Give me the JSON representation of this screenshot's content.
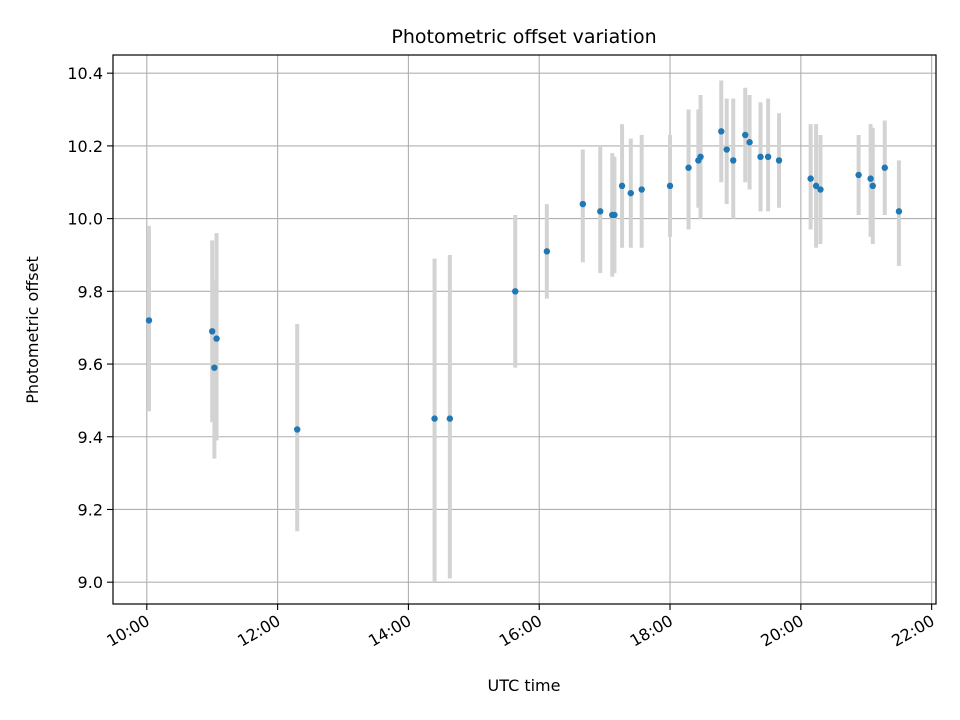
{
  "chart_data": {
    "type": "scatter",
    "title": "Photometric offset variation",
    "xlabel": "UTC time",
    "ylabel": "Photometric offset",
    "x_ticks": [
      "10:00",
      "12:00",
      "14:00",
      "16:00",
      "18:00",
      "20:00",
      "22:00"
    ],
    "y_ticks": [
      "9.0",
      "9.2",
      "9.4",
      "9.6",
      "9.8",
      "10.0",
      "10.2",
      "10.4"
    ],
    "xlim": [
      "09:29",
      "22:04"
    ],
    "ylim": [
      8.94,
      10.45
    ],
    "grid": true,
    "point_color": "#1f77b4",
    "errorbar_color": "#d3d3d3",
    "series": [
      {
        "points": [
          {
            "x": "10:02",
            "y": 9.72,
            "low": 9.47,
            "high": 9.98
          },
          {
            "x": "11:00",
            "y": 9.69,
            "low": 9.44,
            "high": 9.94
          },
          {
            "x": "11:02",
            "y": 9.59,
            "low": 9.34,
            "high": 9.83
          },
          {
            "x": "11:04",
            "y": 9.67,
            "low": 9.39,
            "high": 9.96
          },
          {
            "x": "12:18",
            "y": 9.42,
            "low": 9.14,
            "high": 9.71
          },
          {
            "x": "14:24",
            "y": 9.45,
            "low": 9.0,
            "high": 9.89
          },
          {
            "x": "14:38",
            "y": 9.45,
            "low": 9.01,
            "high": 9.9
          },
          {
            "x": "15:38",
            "y": 9.8,
            "low": 9.59,
            "high": 10.01
          },
          {
            "x": "16:07",
            "y": 9.91,
            "low": 9.78,
            "high": 10.04
          },
          {
            "x": "16:40",
            "y": 10.04,
            "low": 9.88,
            "high": 10.19
          },
          {
            "x": "16:56",
            "y": 10.02,
            "low": 9.85,
            "high": 10.2
          },
          {
            "x": "17:07",
            "y": 10.01,
            "low": 9.84,
            "high": 10.18
          },
          {
            "x": "17:09",
            "y": 10.01,
            "low": 9.85,
            "high": 10.17
          },
          {
            "x": "17:16",
            "y": 10.09,
            "low": 9.92,
            "high": 10.26
          },
          {
            "x": "17:24",
            "y": 10.07,
            "low": 9.92,
            "high": 10.22
          },
          {
            "x": "17:34",
            "y": 10.08,
            "low": 9.92,
            "high": 10.23
          },
          {
            "x": "18:00",
            "y": 10.09,
            "low": 9.95,
            "high": 10.23
          },
          {
            "x": "18:17",
            "y": 10.14,
            "low": 9.97,
            "high": 10.3
          },
          {
            "x": "18:26",
            "y": 10.16,
            "low": 10.03,
            "high": 10.3
          },
          {
            "x": "18:28",
            "y": 10.17,
            "low": 10.0,
            "high": 10.34
          },
          {
            "x": "18:47",
            "y": 10.24,
            "low": 10.1,
            "high": 10.38
          },
          {
            "x": "18:52",
            "y": 10.19,
            "low": 10.04,
            "high": 10.33
          },
          {
            "x": "18:58",
            "y": 10.16,
            "low": 10.0,
            "high": 10.33
          },
          {
            "x": "19:09",
            "y": 10.23,
            "low": 10.1,
            "high": 10.36
          },
          {
            "x": "19:13",
            "y": 10.21,
            "low": 10.08,
            "high": 10.34
          },
          {
            "x": "19:23",
            "y": 10.17,
            "low": 10.02,
            "high": 10.32
          },
          {
            "x": "19:30",
            "y": 10.17,
            "low": 10.02,
            "high": 10.33
          },
          {
            "x": "19:40",
            "y": 10.16,
            "low": 10.03,
            "high": 10.29
          },
          {
            "x": "20:09",
            "y": 10.11,
            "low": 9.97,
            "high": 10.26
          },
          {
            "x": "20:14",
            "y": 10.09,
            "low": 9.92,
            "high": 10.26
          },
          {
            "x": "20:18",
            "y": 10.08,
            "low": 9.93,
            "high": 10.23
          },
          {
            "x": "20:53",
            "y": 10.12,
            "low": 10.01,
            "high": 10.23
          },
          {
            "x": "21:04",
            "y": 10.11,
            "low": 9.95,
            "high": 10.26
          },
          {
            "x": "21:06",
            "y": 10.09,
            "low": 9.93,
            "high": 10.25
          },
          {
            "x": "21:17",
            "y": 10.14,
            "low": 10.01,
            "high": 10.27
          },
          {
            "x": "21:30",
            "y": 10.02,
            "low": 9.87,
            "high": 10.16
          }
        ]
      }
    ]
  }
}
